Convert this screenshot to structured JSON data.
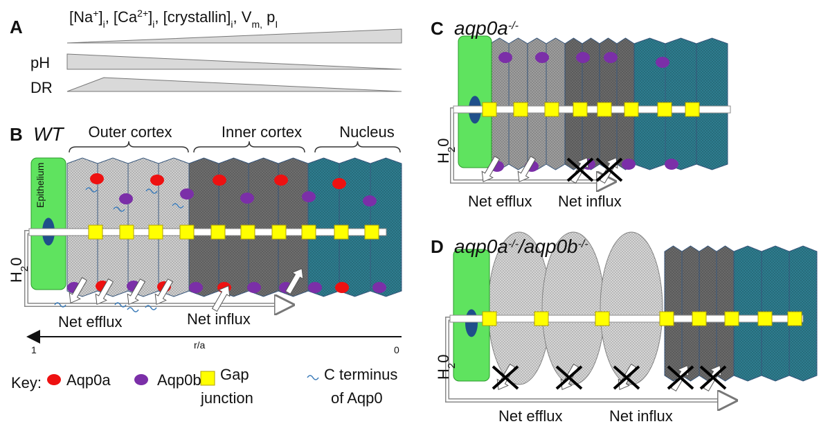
{
  "panel_a": {
    "label": "A",
    "gradient_label": [
      "[Na",
      "+",
      "]",
      "i",
      ", [Ca",
      "2+",
      "]",
      "i",
      ", [crystallin]",
      "i",
      ", V",
      "m,",
      " p",
      "I"
    ],
    "ph": "pH",
    "dr": "DR"
  },
  "panel_b": {
    "label": "B",
    "genotype": "WT",
    "regions": [
      "Outer cortex",
      "Inner cortex",
      "Nucleus"
    ],
    "epithelium": "Epithelium",
    "water": [
      "H",
      "2",
      "0"
    ],
    "net_efflux": "Net efflux",
    "net_influx": "Net influx",
    "axis": {
      "start": "1",
      "label": "r/a",
      "end": "0"
    }
  },
  "key": {
    "title": "Key:",
    "items": [
      [
        "Aqp0a"
      ],
      [
        "Aqp0b"
      ],
      [
        "Gap",
        "junction"
      ],
      [
        "C terminus",
        "of Aqp0"
      ]
    ]
  },
  "panel_c": {
    "label": "C",
    "genotype": [
      "aqp0a",
      "-/-"
    ],
    "water": [
      "H",
      "2",
      "0"
    ],
    "net_efflux": "Net efflux",
    "net_influx": "Net influx"
  },
  "panel_d": {
    "label": "D",
    "genotype": [
      "aqp0a",
      "-/-",
      "/aqp0b",
      "-/-"
    ],
    "water": [
      "H",
      "2",
      "0"
    ],
    "net_efflux": "Net efflux",
    "net_influx": "Net influx"
  }
}
